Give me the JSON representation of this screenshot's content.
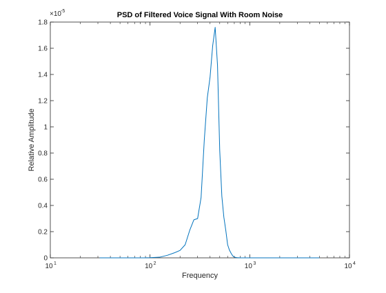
{
  "chart_data": {
    "type": "line",
    "title": "PSD of Filtered Voice Signal With Room Noise",
    "xlabel": "Frequency",
    "ylabel": "Relative Amplitude",
    "xscale": "log",
    "xlim": [
      10,
      10000
    ],
    "ylim": [
      0,
      1.8e-05
    ],
    "y_multiplier_label": "×10",
    "y_multiplier_exponent": "-5",
    "grid": false,
    "box": true,
    "line_color": "#0072BD",
    "x_ticks": [
      {
        "value": 10,
        "base": "10",
        "exp": "1"
      },
      {
        "value": 100,
        "base": "10",
        "exp": "2"
      },
      {
        "value": 1000,
        "base": "10",
        "exp": "3"
      },
      {
        "value": 10000,
        "base": "10",
        "exp": "4"
      }
    ],
    "y_ticks": [
      {
        "value": 0,
        "label": "0"
      },
      {
        "value": 2e-06,
        "label": "0.2"
      },
      {
        "value": 4e-06,
        "label": "0.4"
      },
      {
        "value": 6e-06,
        "label": "0.6"
      },
      {
        "value": 8e-06,
        "label": "0.8"
      },
      {
        "value": 1e-05,
        "label": "1"
      },
      {
        "value": 1.2e-05,
        "label": "1.2"
      },
      {
        "value": 1.4e-05,
        "label": "1.4"
      },
      {
        "value": 1.6e-05,
        "label": "1.6"
      },
      {
        "value": 1.8e-05,
        "label": "1.8"
      }
    ],
    "series": [
      {
        "x": [
          31.25,
          40,
          50,
          62.5,
          75,
          87.5,
          100,
          125,
          150,
          175,
          200,
          225,
          250,
          275,
          300,
          325,
          350,
          375,
          400,
          425,
          450,
          475,
          500,
          525,
          550,
          575,
          600,
          625,
          650,
          675,
          700,
          750,
          800,
          850,
          900,
          950,
          1000,
          1200,
          1500,
          2000,
          3000,
          4000,
          5000
        ],
        "y": [
          0,
          0,
          0,
          0,
          0,
          0,
          1e-08,
          5e-08,
          2e-07,
          3.8e-07,
          5.7e-07,
          1e-06,
          2.1e-06,
          2.9e-06,
          3e-06,
          4.6e-06,
          9e-06,
          1.22e-05,
          1.38e-05,
          1.62e-05,
          1.76e-05,
          1.47e-05,
          8.2e-06,
          4.7e-06,
          3.1e-06,
          2.1e-06,
          1e-06,
          6e-07,
          3.5e-07,
          1.5e-07,
          5e-08,
          1e-08,
          0,
          0,
          0,
          0,
          0,
          0,
          0,
          0,
          0,
          0,
          0
        ]
      }
    ]
  }
}
